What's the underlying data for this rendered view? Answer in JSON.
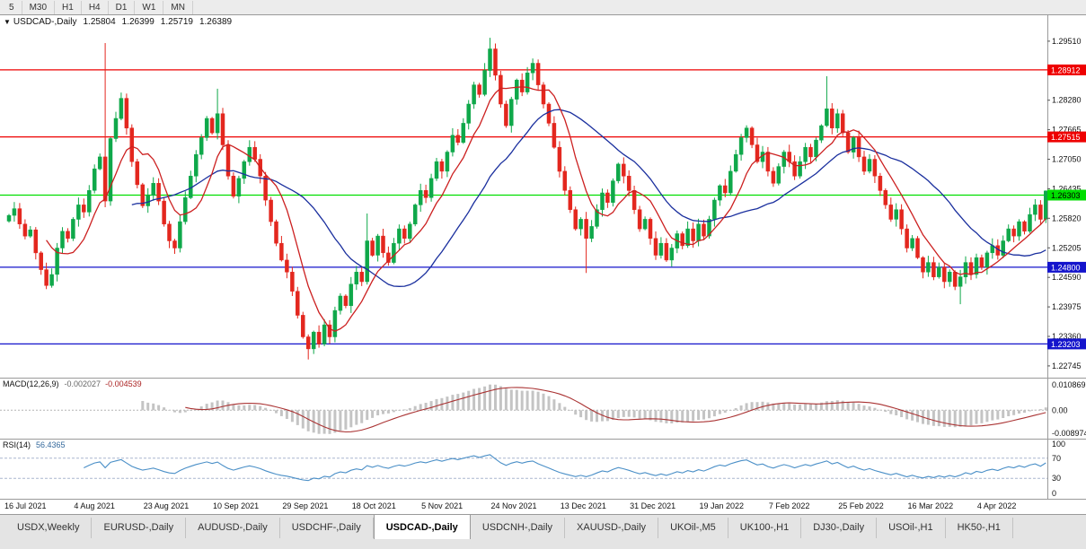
{
  "icons": {
    "collapse": "▼"
  },
  "toolbar": {
    "timeframes": [
      "5",
      "M30",
      "H1",
      "H4",
      "D1",
      "W1",
      "MN"
    ]
  },
  "chart_header": {
    "symbol": "USDCAD-,Daily",
    "open": "1.25804",
    "high": "1.26399",
    "low": "1.25719",
    "close": "1.26389"
  },
  "chart_data": {
    "type": "candlestick",
    "symbol": "USDCAD-,Daily",
    "timeframe": "Daily",
    "price_range": [
      1.225,
      1.3005
    ],
    "closes": [
      1.2588,
      1.2602,
      1.257,
      1.2545,
      1.2558,
      1.251,
      1.2475,
      1.2442,
      1.2465,
      1.252,
      1.2555,
      1.254,
      1.258,
      1.261,
      1.2595,
      1.264,
      1.2685,
      1.271,
      1.2618,
      1.2748,
      1.279,
      1.2832,
      1.277,
      1.27,
      1.2652,
      1.2608,
      1.263,
      1.2655,
      1.2618,
      1.257,
      1.2535,
      1.252,
      1.2575,
      1.2625,
      1.267,
      1.2715,
      1.275,
      1.279,
      1.276,
      1.28,
      1.2735,
      1.267,
      1.2628,
      1.2665,
      1.27,
      1.273,
      1.2705,
      1.267,
      1.262,
      1.2575,
      1.253,
      1.2495,
      1.247,
      1.243,
      1.238,
      1.2335,
      1.231,
      1.2345,
      1.232,
      1.236,
      1.2335,
      1.239,
      1.242,
      1.24,
      1.2445,
      1.247,
      1.245,
      1.2535,
      1.2505,
      1.2545,
      1.251,
      1.249,
      1.253,
      1.256,
      1.254,
      1.257,
      1.261,
      1.264,
      1.2625,
      1.2665,
      1.27,
      1.268,
      1.272,
      1.2755,
      1.274,
      1.278,
      1.282,
      1.286,
      1.284,
      1.289,
      1.2935,
      1.288,
      1.282,
      1.2775,
      1.283,
      1.287,
      1.2845,
      1.2885,
      1.2905,
      1.286,
      1.282,
      1.278,
      1.273,
      1.268,
      1.264,
      1.26,
      1.256,
      1.258,
      1.254,
      1.2565,
      1.26,
      1.2635,
      1.2615,
      1.266,
      1.2695,
      1.267,
      1.264,
      1.26,
      1.256,
      1.258,
      1.254,
      1.2505,
      1.253,
      1.2495,
      1.252,
      1.255,
      1.2525,
      1.256,
      1.2535,
      1.257,
      1.2545,
      1.258,
      1.262,
      1.265,
      1.2635,
      1.268,
      1.2715,
      1.275,
      1.277,
      1.2735,
      1.27,
      1.272,
      1.268,
      1.2655,
      1.269,
      1.272,
      1.27,
      1.267,
      1.27,
      1.273,
      1.271,
      1.2745,
      1.2775,
      1.281,
      1.277,
      1.28,
      1.276,
      1.272,
      1.275,
      1.271,
      1.268,
      1.2705,
      1.267,
      1.264,
      1.261,
      1.258,
      1.26,
      1.256,
      1.252,
      1.254,
      1.25,
      1.247,
      1.249,
      1.246,
      1.248,
      1.245,
      1.247,
      1.244,
      1.246,
      1.249,
      1.2465,
      1.25,
      1.248,
      1.251,
      1.2525,
      1.2505,
      1.2535,
      1.256,
      1.2545,
      1.2575,
      1.2555,
      1.259,
      1.261,
      1.258,
      1.2639
    ],
    "wick_overrides": {
      "18": {
        "high": 1.2947
      },
      "39": {
        "high": 1.2852
      },
      "56": {
        "low": 1.2288
      },
      "67": {
        "high": 1.2592
      },
      "90": {
        "high": 1.2958
      },
      "108": {
        "low": 1.2468
      },
      "153": {
        "high": 1.2878
      },
      "178": {
        "low": 1.2403
      },
      "194": {
        "high": 1.264,
        "low": 1.2572
      }
    },
    "hlines": [
      {
        "value": 1.28912,
        "color": "#ee0000"
      },
      {
        "value": 1.27515,
        "color": "#ee0000"
      },
      {
        "value": 1.26303,
        "color": "#00dd00"
      },
      {
        "value": 1.248,
        "color": "#1414cc"
      },
      {
        "value": 1.23203,
        "color": "#1414cc"
      }
    ],
    "axis_ticks": [
      1.2951,
      1.2828,
      1.27665,
      1.2705,
      1.26435,
      1.2582,
      1.25205,
      1.2459,
      1.23975,
      1.2336,
      1.22745
    ],
    "date_labels": [
      "16 Jul 2021",
      "4 Aug 2021",
      "23 Aug 2021",
      "10 Sep 2021",
      "29 Sep 2021",
      "18 Oct 2021",
      "5 Nov 2021",
      "24 Nov 2021",
      "13 Dec 2021",
      "31 Dec 2021",
      "19 Jan 2022",
      "7 Feb 2022",
      "25 Feb 2022",
      "16 Mar 2022",
      "4 Apr 2022"
    ],
    "ma_fast_period": 8,
    "ma_slow_period": 24,
    "macd": {
      "label": "MACD(12,26,9)",
      "value1": "-0.002027",
      "value2": "-0.004539",
      "range": [
        -0.008974,
        0.010869
      ],
      "axis_labels": [
        "0.010869",
        "0.00",
        "-0.008974"
      ],
      "fast": 12,
      "slow": 26,
      "signal": 9
    },
    "rsi": {
      "label": "RSI(14)",
      "value": "56.4365",
      "period": 14,
      "levels": [
        100,
        70,
        30,
        0
      ],
      "guides": [
        70,
        30
      ]
    }
  },
  "colors": {
    "up": "#0fa84a",
    "down": "#e3271e",
    "ma_fast": "#cc2020",
    "ma_slow": "#1a2f9e",
    "macd_hist": "#c4c4c4",
    "macd_signal": "#aa3333",
    "rsi_line": "#4a8fc7",
    "axis_sep": "#9a9a9a",
    "green_line": "#00dd00"
  },
  "tabs": {
    "active": "USDCAD-,Daily",
    "items": [
      "USDX,Weekly",
      "EURUSD-,Daily",
      "AUDUSD-,Daily",
      "USDCHF-,Daily",
      "USDCAD-,Daily",
      "USDCNH-,Daily",
      "XAUUSD-,Daily",
      "UKOil-,M5",
      "UK100-,H1",
      "DJ30-,Daily",
      "USOil-,H1",
      "HK50-,H1"
    ]
  }
}
